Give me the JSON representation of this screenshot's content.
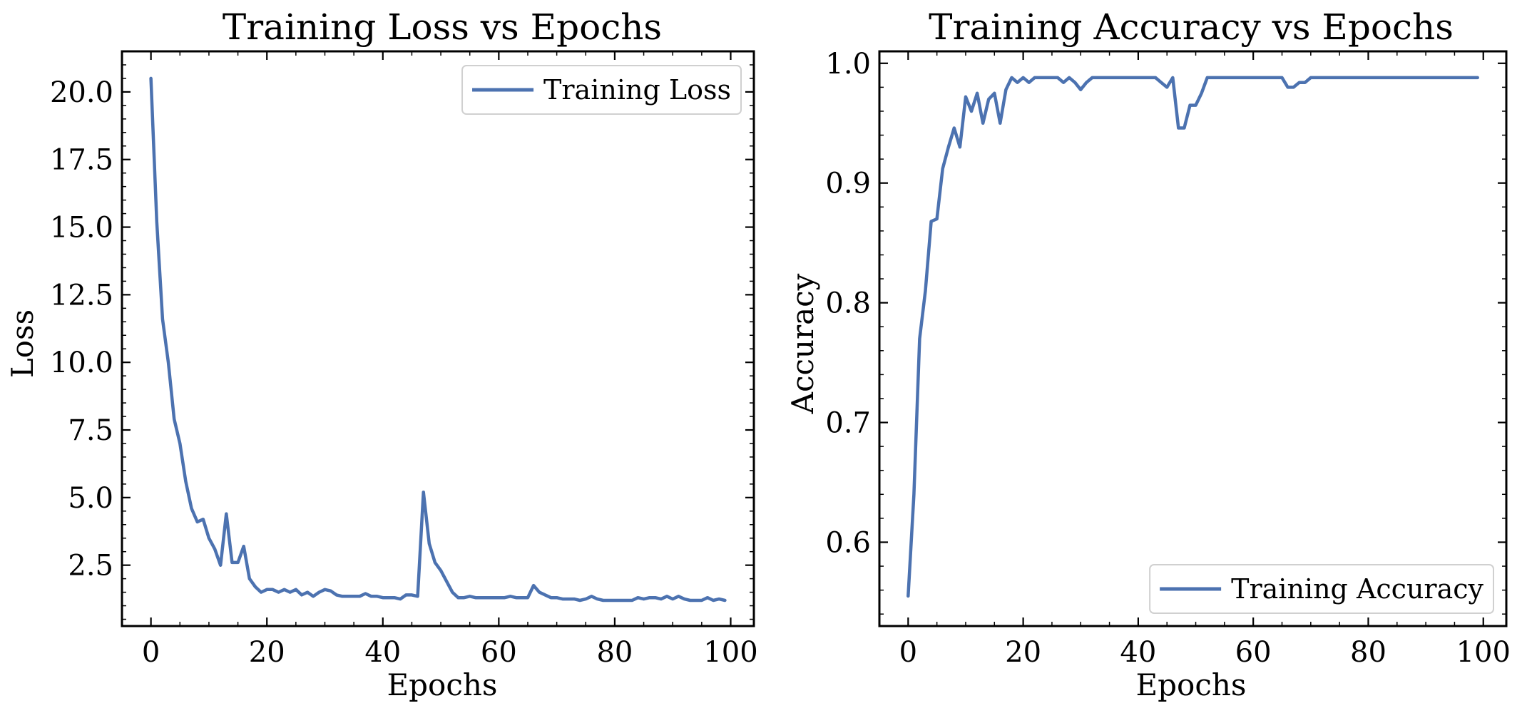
{
  "chart_data": [
    {
      "type": "line",
      "title": "Training Loss vs Epochs",
      "xlabel": "Epochs",
      "ylabel": "Loss",
      "xlim": [
        -5,
        104
      ],
      "ylim": [
        0.25,
        21.5
      ],
      "xticks": [
        0,
        20,
        40,
        60,
        80,
        100
      ],
      "yticks": [
        2.5,
        5.0,
        7.5,
        10.0,
        12.5,
        15.0,
        17.5,
        20.0
      ],
      "ytick_decimals": 1,
      "legend_position": "top-right",
      "grid": false,
      "color": "#4c72b0",
      "series": [
        {
          "name": "Training Loss",
          "x": [
            0,
            1,
            2,
            3,
            4,
            5,
            6,
            7,
            8,
            9,
            10,
            11,
            12,
            13,
            14,
            15,
            16,
            17,
            18,
            19,
            20,
            21,
            22,
            23,
            24,
            25,
            26,
            27,
            28,
            29,
            30,
            31,
            32,
            33,
            34,
            35,
            36,
            37,
            38,
            39,
            40,
            41,
            42,
            43,
            44,
            45,
            46,
            47,
            48,
            49,
            50,
            51,
            52,
            53,
            54,
            55,
            56,
            57,
            58,
            59,
            60,
            61,
            62,
            63,
            64,
            65,
            66,
            67,
            68,
            69,
            70,
            71,
            72,
            73,
            74,
            75,
            76,
            77,
            78,
            79,
            80,
            81,
            82,
            83,
            84,
            85,
            86,
            87,
            88,
            89,
            90,
            91,
            92,
            93,
            94,
            95,
            96,
            97,
            98,
            99
          ],
          "values": [
            20.5,
            15.2,
            11.6,
            10.0,
            7.9,
            7.0,
            5.6,
            4.6,
            4.1,
            4.2,
            3.5,
            3.1,
            2.5,
            4.4,
            2.6,
            2.6,
            3.2,
            2.0,
            1.7,
            1.5,
            1.6,
            1.6,
            1.5,
            1.6,
            1.5,
            1.6,
            1.4,
            1.5,
            1.35,
            1.5,
            1.6,
            1.55,
            1.4,
            1.35,
            1.35,
            1.35,
            1.35,
            1.45,
            1.35,
            1.35,
            1.3,
            1.3,
            1.3,
            1.25,
            1.4,
            1.4,
            1.35,
            5.2,
            3.3,
            2.6,
            2.3,
            1.9,
            1.5,
            1.3,
            1.3,
            1.35,
            1.3,
            1.3,
            1.3,
            1.3,
            1.3,
            1.3,
            1.35,
            1.3,
            1.3,
            1.3,
            1.75,
            1.5,
            1.4,
            1.3,
            1.3,
            1.25,
            1.25,
            1.25,
            1.2,
            1.25,
            1.35,
            1.25,
            1.2,
            1.2,
            1.2,
            1.2,
            1.2,
            1.2,
            1.3,
            1.25,
            1.3,
            1.3,
            1.25,
            1.35,
            1.25,
            1.35,
            1.25,
            1.2,
            1.2,
            1.2,
            1.3,
            1.2,
            1.25,
            1.2
          ]
        }
      ]
    },
    {
      "type": "line",
      "title": "Training Accuracy vs Epochs",
      "xlabel": "Epochs",
      "ylabel": "Accuracy",
      "xlim": [
        -5,
        104
      ],
      "ylim": [
        0.53,
        1.01
      ],
      "xticks": [
        0,
        20,
        40,
        60,
        80,
        100
      ],
      "yticks": [
        0.6,
        0.7,
        0.8,
        0.9,
        1.0
      ],
      "ytick_decimals": 1,
      "legend_position": "bottom-right",
      "grid": false,
      "color": "#4c72b0",
      "series": [
        {
          "name": "Training Accuracy",
          "x": [
            0,
            1,
            2,
            3,
            4,
            5,
            6,
            7,
            8,
            9,
            10,
            11,
            12,
            13,
            14,
            15,
            16,
            17,
            18,
            19,
            20,
            21,
            22,
            23,
            24,
            25,
            26,
            27,
            28,
            29,
            30,
            31,
            32,
            33,
            34,
            35,
            36,
            37,
            38,
            39,
            40,
            41,
            42,
            43,
            44,
            45,
            46,
            47,
            48,
            49,
            50,
            51,
            52,
            53,
            54,
            55,
            56,
            57,
            58,
            59,
            60,
            61,
            62,
            63,
            64,
            65,
            66,
            67,
            68,
            69,
            70,
            71,
            72,
            73,
            74,
            75,
            76,
            77,
            78,
            79,
            80,
            81,
            82,
            83,
            84,
            85,
            86,
            87,
            88,
            89,
            90,
            91,
            92,
            93,
            94,
            95,
            96,
            97,
            98,
            99
          ],
          "values": [
            0.555,
            0.64,
            0.77,
            0.81,
            0.868,
            0.87,
            0.912,
            0.93,
            0.946,
            0.93,
            0.972,
            0.96,
            0.975,
            0.95,
            0.97,
            0.975,
            0.95,
            0.978,
            0.988,
            0.984,
            0.988,
            0.984,
            0.988,
            0.988,
            0.988,
            0.988,
            0.988,
            0.984,
            0.988,
            0.984,
            0.978,
            0.984,
            0.988,
            0.988,
            0.988,
            0.988,
            0.988,
            0.988,
            0.988,
            0.988,
            0.988,
            0.988,
            0.988,
            0.988,
            0.984,
            0.98,
            0.988,
            0.946,
            0.946,
            0.965,
            0.965,
            0.975,
            0.988,
            0.988,
            0.988,
            0.988,
            0.988,
            0.988,
            0.988,
            0.988,
            0.988,
            0.988,
            0.988,
            0.988,
            0.988,
            0.988,
            0.98,
            0.98,
            0.984,
            0.984,
            0.988,
            0.988,
            0.988,
            0.988,
            0.988,
            0.988,
            0.988,
            0.988,
            0.988,
            0.988,
            0.988,
            0.988,
            0.988,
            0.988,
            0.988,
            0.988,
            0.988,
            0.988,
            0.988,
            0.988,
            0.988,
            0.988,
            0.988,
            0.988,
            0.988,
            0.988,
            0.988,
            0.988,
            0.988,
            0.988
          ]
        }
      ]
    }
  ]
}
